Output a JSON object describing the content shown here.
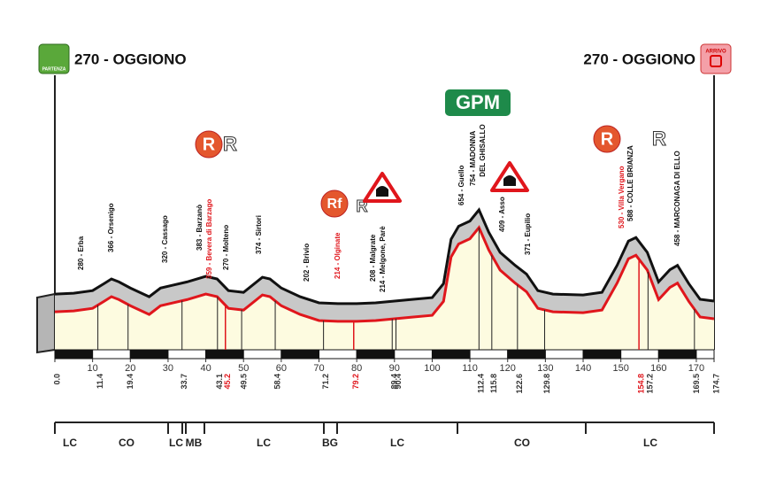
{
  "chart_data": {
    "type": "profile",
    "start_town": "270 - OGGIONO",
    "finish_town": "270 - OGGIONO",
    "start_icon": "PARTENZA",
    "finish_icon": "ARRIVO",
    "gpm": "GPM",
    "signs": [
      "R",
      "R",
      "Rf",
      "R",
      "R",
      "R"
    ],
    "xlim": [
      0,
      174.7
    ],
    "ylim": [
      -50,
      800
    ],
    "xticks": [
      10,
      20,
      30,
      40,
      50,
      60,
      70,
      80,
      90,
      100,
      110,
      120,
      130,
      140,
      150,
      160,
      170
    ],
    "profile": {
      "km": [
        0,
        5,
        10,
        13,
        15,
        17,
        20,
        25,
        28,
        31,
        35,
        40,
        43,
        46,
        50,
        55,
        57,
        60,
        65,
        70,
        75,
        80,
        85,
        90,
        95,
        100,
        103,
        105,
        107,
        110,
        112.4,
        115,
        118,
        122,
        125,
        128,
        132,
        140,
        145,
        149,
        152,
        154,
        157,
        160,
        163,
        165,
        168,
        171,
        174.7
      ],
      "altitude": [
        270,
        275,
        290,
        330,
        357,
        340,
        305,
        255,
        305,
        320,
        340,
        372,
        357,
        290,
        280,
        367,
        357,
        305,
        255,
        220,
        215,
        215,
        220,
        230,
        240,
        250,
        330,
        585,
        660,
        690,
        754,
        625,
        510,
        435,
        385,
        290,
        270,
        265,
        280,
        435,
        575,
        595,
        510,
        340,
        410,
        435,
        330,
        240,
        230
      ]
    },
    "km_markers": [
      {
        "value": 0,
        "label": "0.0"
      },
      11.4,
      19.4,
      33.7,
      43.1,
      45.2,
      49.5,
      58.4,
      71.2,
      79.2,
      89.4,
      90.4,
      112.4,
      115.8,
      122.6,
      129.8,
      154.8,
      157.2,
      169.5,
      174.7
    ],
    "red_markers": [
      45.2,
      79.2,
      154.8
    ],
    "waypoints": [
      [
        "280 - Erba"
      ],
      [
        "366 - Orsenigo"
      ],
      [
        "320 - Cassago"
      ],
      [
        "383 - Barzanò"
      ],
      [
        "359 - Bevera di Barzago"
      ],
      [
        "270 - Molteno"
      ],
      [
        "374 - Sirtori"
      ],
      [
        "202 - Brivio"
      ],
      [
        "214 - Olginate"
      ],
      [
        "208 - Malgrate"
      ],
      [
        "214 - Melgone, Parè"
      ],
      [
        "654 - Guello"
      ],
      [
        "754 - MADONNA",
        "DEL GHISALLO"
      ],
      [
        "409 - Asso"
      ],
      [
        "371 - Eupilio"
      ],
      [
        "530 - Villa Vergano"
      ],
      [
        "588 - COLLE BRIANZA"
      ],
      [
        "458 - MARCONAGA DI ELLO"
      ]
    ],
    "red_waypoints": [
      "359 - Bevera di Barzago",
      "214 - Olginate",
      "530 - Villa Vergano"
    ],
    "zones": [
      "LC",
      "CO",
      "LC",
      "MB",
      "LC",
      "BG",
      "LC",
      "CO",
      "LC"
    ]
  }
}
